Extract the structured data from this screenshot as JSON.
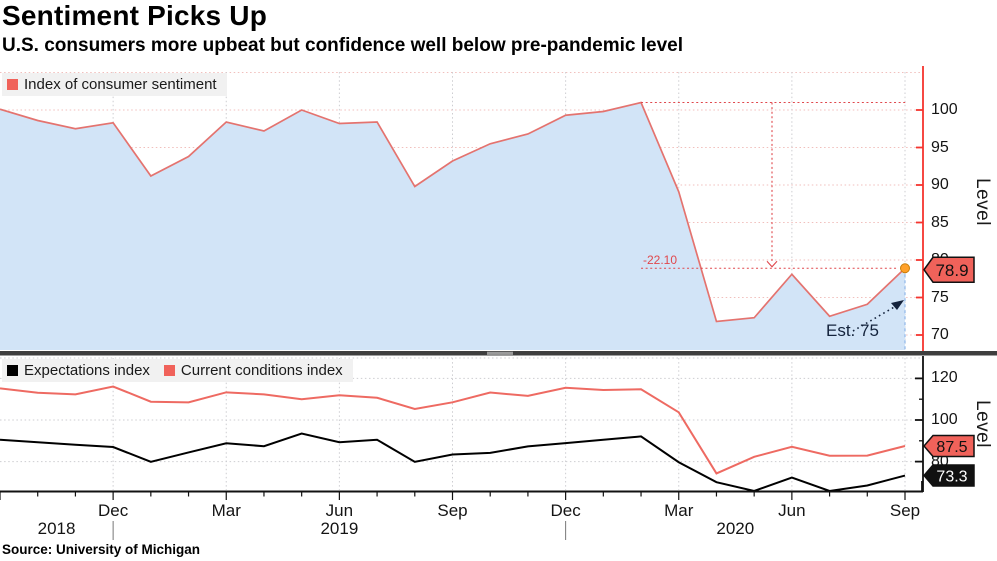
{
  "header": {
    "title": "Sentiment Picks Up",
    "subtitle": "U.S. consumers more upbeat but confidence well below pre-pandemic level"
  },
  "source": "Source: University of Michigan",
  "top_panel": {
    "legend": [
      {
        "label": "Index of consumer sentiment",
        "color": "#f0625a"
      }
    ],
    "axis_label": "Level",
    "y_ticks": [
      70,
      75,
      80,
      85,
      90,
      95,
      100
    ],
    "last_value": 78.9,
    "last_value_label": "78.9",
    "annotation": {
      "drop_label": "-22.10",
      "estimate_label": "Est. 75",
      "peak_value": 101.0,
      "measured_low_value": 78.9,
      "estimate_level": 75
    }
  },
  "bottom_panel": {
    "legend": [
      {
        "label": "Expectations index",
        "color": "#000000"
      },
      {
        "label": "Current conditions index",
        "color": "#f0625a"
      }
    ],
    "axis_label": "Level",
    "y_ticks": [
      80,
      100,
      120
    ],
    "minor_ticks": [
      90,
      110
    ],
    "badges": [
      {
        "label": "87.5",
        "value": 87.5,
        "fill": "#f0625a",
        "text_color": "#111111"
      },
      {
        "label": "73.3",
        "value": 73.3,
        "fill": "#111111",
        "text_color": "#ffffff"
      }
    ]
  },
  "x_axis": {
    "month_ticks": [
      {
        "label": "Dec",
        "index": 3
      },
      {
        "label": "Mar",
        "index": 6
      },
      {
        "label": "Jun",
        "index": 9
      },
      {
        "label": "Sep",
        "index": 12
      },
      {
        "label": "Dec",
        "index": 15
      },
      {
        "label": "Mar",
        "index": 18
      },
      {
        "label": "Jun",
        "index": 21
      },
      {
        "label": "Sep",
        "index": 24
      }
    ],
    "year_labels": [
      {
        "label": "2018",
        "mid_index": 1.5
      },
      {
        "label": "2019",
        "mid_index": 9
      },
      {
        "label": "2020",
        "mid_index": 19.5
      }
    ],
    "year_divider_indices": [
      3,
      15
    ]
  },
  "colors": {
    "salmon": "#f0625a",
    "sentiment_line": "#e4736f",
    "area_fill": "#d2e4f7",
    "area_edge": "#8fb7e8",
    "axis_red": "#f5342e",
    "grid_pink": "#f1bfbc",
    "grid_gray": "#cdcdd1",
    "measure_red": "#e0474c",
    "black_line": "#1a1a1a",
    "conditions_line": "#ee6a62",
    "orange": "#ffa028",
    "orange_stroke": "#c87d08",
    "divider": "#3e3e3e",
    "divider_handle": "#9a9a9a",
    "annotation_dark": "#14233c",
    "legend_bg": "#f1f1f1",
    "axis_black": "#111111"
  },
  "chart_data": [
    {
      "type": "area",
      "title": "Index of consumer sentiment",
      "ylabel": "Level",
      "ylim": [
        68,
        105
      ],
      "y_ticks": [
        70,
        75,
        80,
        85,
        90,
        95,
        100
      ],
      "legend_position": "top-left",
      "grid": true,
      "x": [
        "Sep 2018",
        "Oct 2018",
        "Nov 2018",
        "Dec 2018",
        "Jan 2019",
        "Feb 2019",
        "Mar 2019",
        "Apr 2019",
        "May 2019",
        "Jun 2019",
        "Jul 2019",
        "Aug 2019",
        "Sep 2019",
        "Oct 2019",
        "Nov 2019",
        "Dec 2019",
        "Jan 2020",
        "Feb 2020",
        "Mar 2020",
        "Apr 2020",
        "May 2020",
        "Jun 2020",
        "Jul 2020",
        "Aug 2020",
        "Sep 2020"
      ],
      "values": [
        100.1,
        98.6,
        97.5,
        98.3,
        91.2,
        93.8,
        98.4,
        97.2,
        100.0,
        98.2,
        98.4,
        89.8,
        93.2,
        95.5,
        96.8,
        99.3,
        99.8,
        101.0,
        89.1,
        71.8,
        72.3,
        78.1,
        72.5,
        74.1,
        78.9
      ],
      "annotations": [
        {
          "type": "measurement",
          "text": "-22.10",
          "from_value": 101.0,
          "to_value": 78.9
        },
        {
          "type": "arrow-note",
          "text": "Est. 75",
          "points_at_value": 75
        },
        {
          "type": "last-point-marker",
          "value": 78.9,
          "label": "78.9"
        }
      ]
    },
    {
      "type": "line",
      "ylabel": "Level",
      "ylim": [
        66,
        130
      ],
      "y_ticks": [
        80,
        100,
        120
      ],
      "legend_position": "top-left",
      "grid": true,
      "x": [
        "Sep 2018",
        "Oct 2018",
        "Nov 2018",
        "Dec 2018",
        "Jan 2019",
        "Feb 2019",
        "Mar 2019",
        "Apr 2019",
        "May 2019",
        "Jun 2019",
        "Jul 2019",
        "Aug 2019",
        "Sep 2019",
        "Oct 2019",
        "Nov 2019",
        "Dec 2019",
        "Jan 2020",
        "Feb 2020",
        "Mar 2020",
        "Apr 2020",
        "May 2020",
        "Jun 2020",
        "Jul 2020",
        "Aug 2020",
        "Sep 2020"
      ],
      "series": [
        {
          "name": "Expectations index",
          "color": "#000000",
          "last_label": "73.3",
          "values": [
            90.5,
            89.3,
            88.1,
            87.0,
            79.9,
            84.4,
            88.8,
            87.4,
            93.5,
            89.3,
            90.5,
            79.9,
            83.4,
            84.2,
            87.3,
            88.9,
            90.5,
            92.1,
            79.7,
            70.1,
            65.9,
            72.3,
            65.9,
            68.5,
            73.3
          ]
        },
        {
          "name": "Current conditions index",
          "color": "#ee6a62",
          "last_label": "87.5",
          "values": [
            115.2,
            113.1,
            112.3,
            116.1,
            108.8,
            108.5,
            113.3,
            112.3,
            110.0,
            111.9,
            110.7,
            105.3,
            108.5,
            113.2,
            111.6,
            115.5,
            114.4,
            114.8,
            103.7,
            74.3,
            82.3,
            87.1,
            82.8,
            82.9,
            87.5
          ]
        }
      ]
    }
  ]
}
